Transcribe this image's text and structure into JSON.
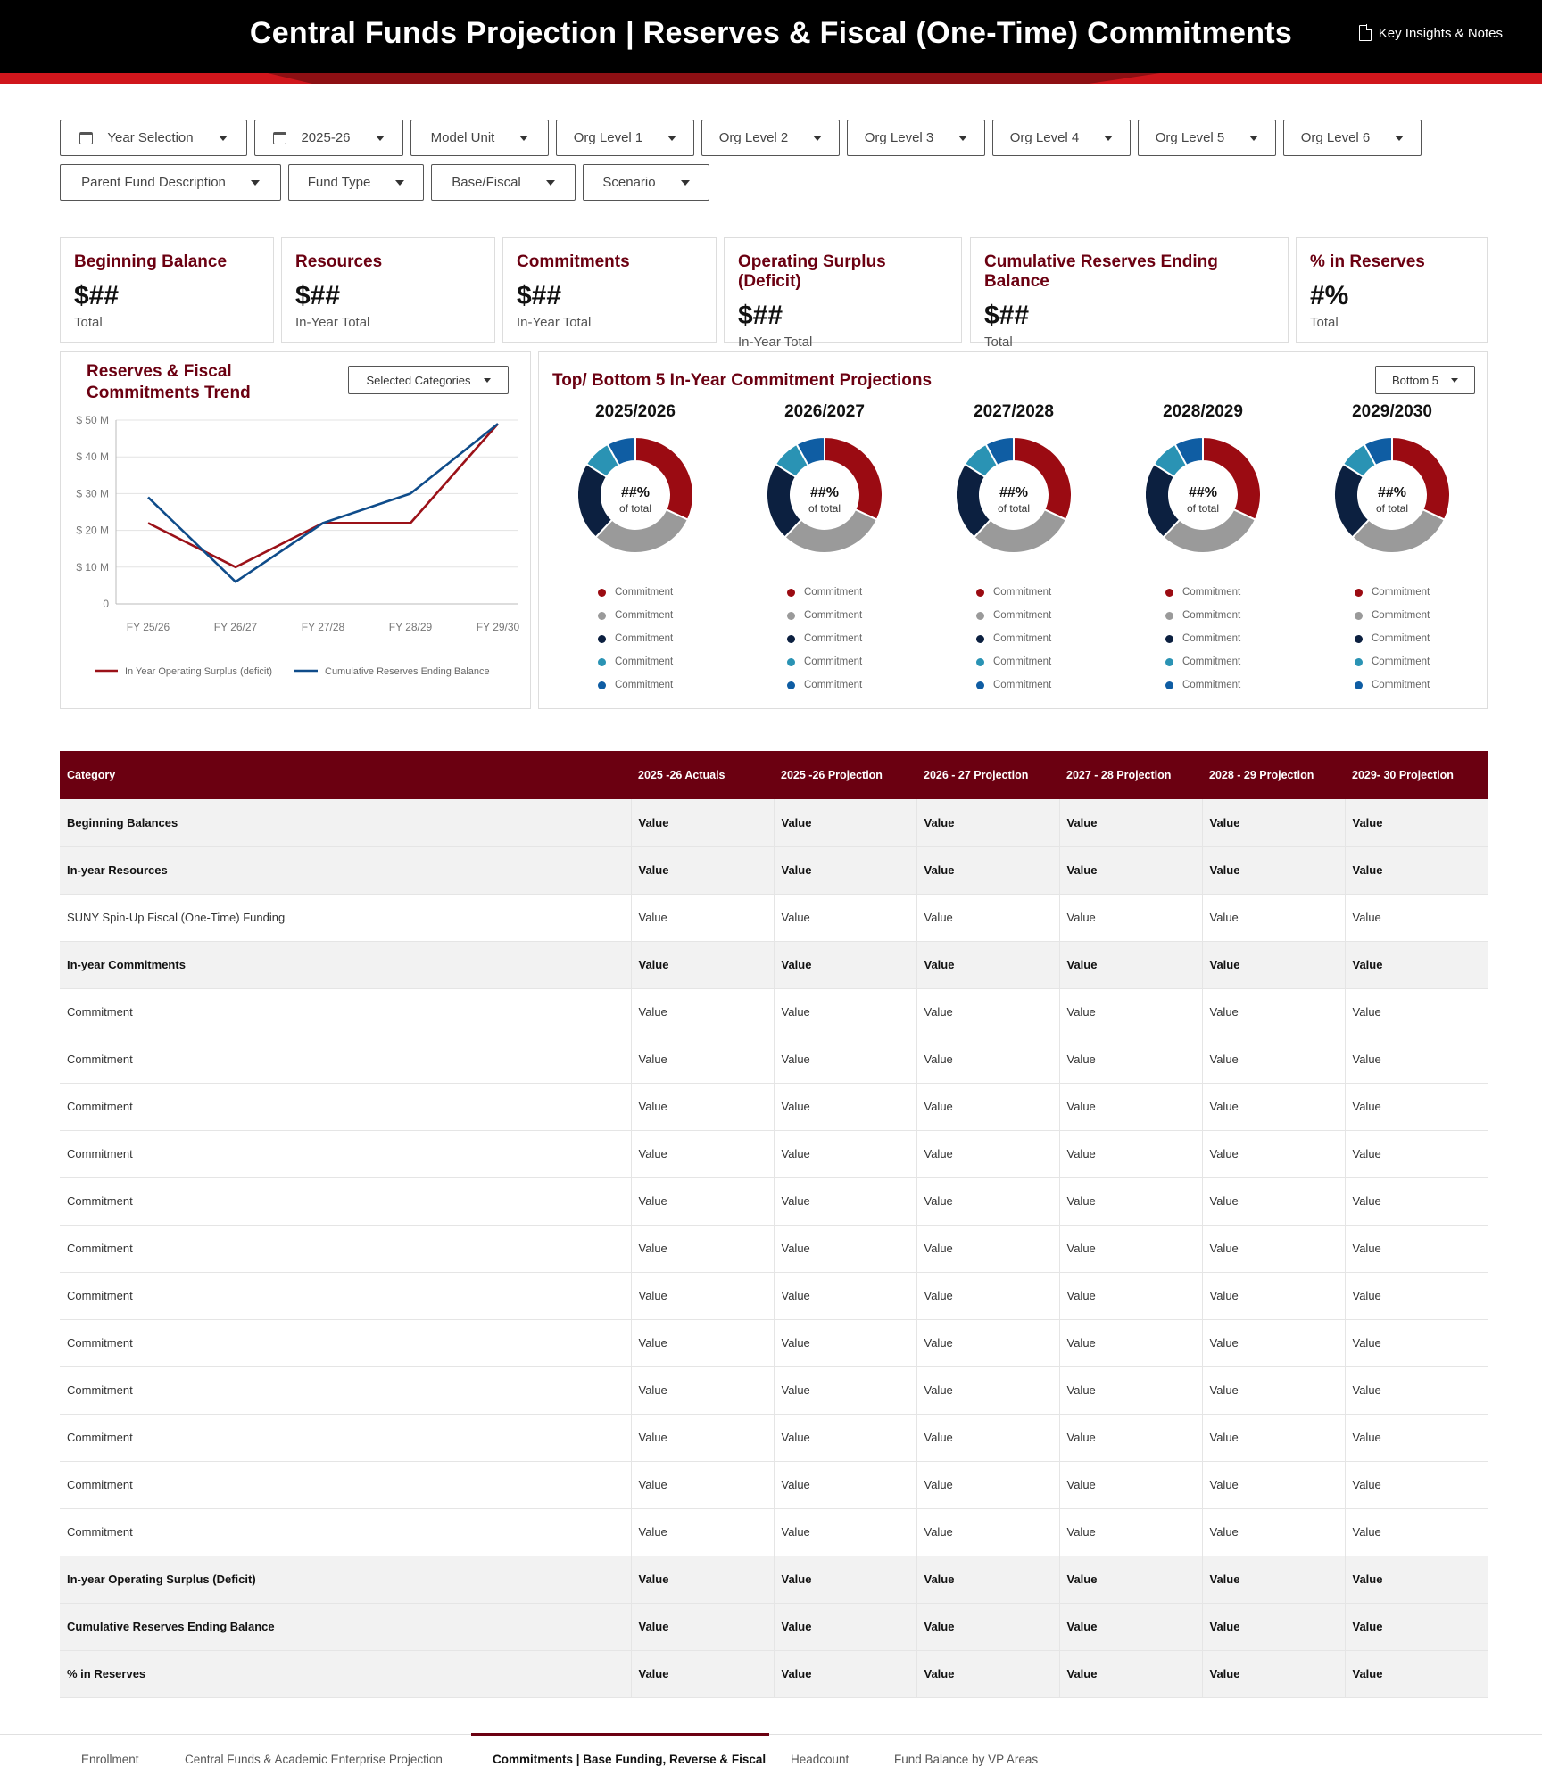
{
  "header": {
    "title": "Central Funds Projection | Reserves & Fiscal (One-Time) Commitments",
    "notes_label": "Key Insights & Notes"
  },
  "filters": {
    "row1": [
      "Year Selection",
      "2025-26",
      "Model Unit",
      "Org Level 1",
      "Org Level 2",
      "Org Level 3",
      "Org Level 4",
      "Org Level 5",
      "Org Level 6"
    ],
    "row2": [
      "Parent Fund Description",
      "Fund Type",
      "Base/Fiscal",
      "Scenario"
    ]
  },
  "kpis": [
    {
      "title": "Beginning Balance",
      "value": "$##",
      "sub": "Total"
    },
    {
      "title": "Resources",
      "value": "$##",
      "sub": "In-Year Total"
    },
    {
      "title": "Commitments",
      "value": "$##",
      "sub": "In-Year Total"
    },
    {
      "title": "Operating Surplus (Deficit)",
      "value": "$##",
      "sub": "In-Year Total"
    },
    {
      "title": "Cumulative Reserves Ending Balance",
      "value": "$##",
      "sub": "Total"
    },
    {
      "title": "% in Reserves",
      "value": "#%",
      "sub": "Total"
    }
  ],
  "trend": {
    "title_line1": "Reserves & Fiscal",
    "title_line2": "Commitments Trend",
    "dropdown_label": "Selected Categories"
  },
  "chart_data": [
    {
      "type": "line",
      "title": "Reserves & Fiscal Commitments Trend",
      "x": [
        "FY 25/26",
        "FY 26/27",
        "FY 27/28",
        "FY 28/29",
        "FY 29/30"
      ],
      "y_ticks": [
        "$ 50 M",
        "$ 40 M",
        "$ 30 M",
        "$ 20 M",
        "$ 10 M",
        "0"
      ],
      "ylim": [
        0,
        50
      ],
      "unit": "$ M",
      "grid": true,
      "legend_position": "bottom",
      "series": [
        {
          "name": "In Year Operating Surplus (deficit)",
          "color": "#9b1118",
          "values": [
            22,
            10,
            22,
            22,
            49
          ]
        },
        {
          "name": "Cumulative Reserves Ending Balance",
          "color": "#0f4c8a",
          "values": [
            29,
            6,
            22,
            30,
            49
          ]
        }
      ]
    },
    {
      "type": "pie",
      "title": "Top/ Bottom 5 In-Year Commitment Projections",
      "years": [
        "2025/2026",
        "2026/2027",
        "2027/2028",
        "2028/2029",
        "2029/2030"
      ],
      "categories": [
        "Commitment",
        "Commitment",
        "Commitment",
        "Commitment",
        "Commitment"
      ],
      "colors": [
        "#9b0b12",
        "#9a9a9a",
        "#0c2040",
        "#2a93b4",
        "#0f5da3"
      ],
      "values": [
        32,
        30,
        22,
        8,
        8
      ],
      "center_value": "##%",
      "center_label": "of total"
    }
  ],
  "donuts": {
    "title": "Top/ Bottom 5 In-Year Commitment Projections",
    "dropdown_label": "Bottom 5",
    "years": [
      "2025/2026",
      "2026/2027",
      "2027/2028",
      "2028/2029",
      "2029/2030"
    ],
    "center_value": "##%",
    "center_label": "of total",
    "legend": [
      "Commitment",
      "Commitment",
      "Commitment",
      "Commitment",
      "Commitment"
    ],
    "colors": [
      "#9b0b12",
      "#9a9a9a",
      "#0c2040",
      "#2a93b4",
      "#0f5da3"
    ]
  },
  "table": {
    "headers": [
      "Category",
      "2025 -26 Actuals",
      "2025 -26 Projection",
      "2026 - 27 Projection",
      "2027 - 28 Projection",
      "2028 - 29 Projection",
      "2029- 30 Projection"
    ],
    "rows": [
      {
        "label": "Beginning Balances",
        "bold": true
      },
      {
        "label": "In-year Resources",
        "bold": true
      },
      {
        "label": "SUNY Spin-Up Fiscal (One-Time) Funding",
        "bold": false
      },
      {
        "label": "In-year Commitments",
        "bold": true
      },
      {
        "label": "Commitment",
        "bold": false
      },
      {
        "label": "Commitment",
        "bold": false
      },
      {
        "label": "Commitment",
        "bold": false
      },
      {
        "label": "Commitment",
        "bold": false
      },
      {
        "label": "Commitment",
        "bold": false
      },
      {
        "label": "Commitment",
        "bold": false
      },
      {
        "label": "Commitment",
        "bold": false
      },
      {
        "label": "Commitment",
        "bold": false
      },
      {
        "label": "Commitment",
        "bold": false
      },
      {
        "label": "Commitment",
        "bold": false
      },
      {
        "label": "Commitment",
        "bold": false
      },
      {
        "label": "Commitment",
        "bold": false
      },
      {
        "label": "In-year Operating Surplus (Deficit)",
        "bold": true
      },
      {
        "label": "Cumulative Reserves Ending Balance",
        "bold": true
      },
      {
        "label": "% in Reserves",
        "bold": true
      }
    ],
    "cell_value": "Value"
  },
  "tabs": [
    {
      "label": "Enrollment",
      "active": false
    },
    {
      "label": "Central Funds & Academic Enterprise Projection",
      "active": false
    },
    {
      "label": "Commitments | Base Funding, Reverse & Fiscal",
      "active": true
    },
    {
      "label": "Headcount",
      "active": false
    },
    {
      "label": "Fund Balance by VP Areas",
      "active": false
    }
  ]
}
